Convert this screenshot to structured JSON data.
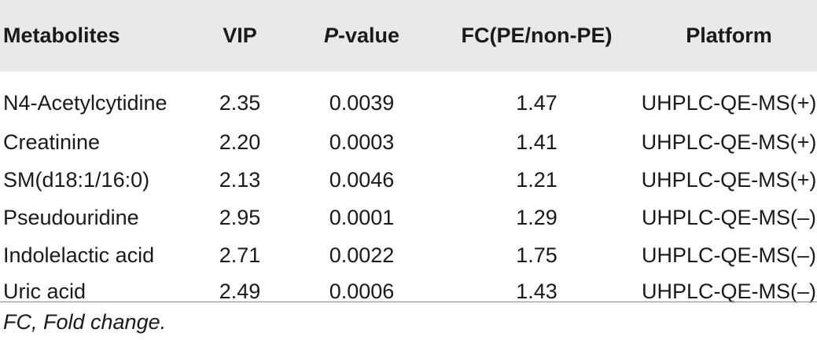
{
  "table": {
    "headers": {
      "metabolites": "Metabolites",
      "vip": "VIP",
      "p_italic": "P",
      "p_rest": "-value",
      "fc": "FC(PE/non-PE)",
      "platform": "Platform"
    },
    "rows": [
      {
        "metabolite": "N4-Acetylcytidine",
        "vip": "2.35",
        "p": "0.0039",
        "fc": "1.47",
        "platform": "UHPLC-QE-MS(+)"
      },
      {
        "metabolite": "Creatinine",
        "vip": "2.20",
        "p": "0.0003",
        "fc": "1.41",
        "platform": "UHPLC-QE-MS(+)"
      },
      {
        "metabolite": "SM(d18:1/16:0)",
        "vip": "2.13",
        "p": "0.0046",
        "fc": "1.21",
        "platform": "UHPLC-QE-MS(+)"
      },
      {
        "metabolite": "Pseudouridine",
        "vip": "2.95",
        "p": "0.0001",
        "fc": "1.29",
        "platform": "UHPLC-QE-MS(–)"
      },
      {
        "metabolite": "Indolelactic acid",
        "vip": "2.71",
        "p": "0.0022",
        "fc": "1.75",
        "platform": "UHPLC-QE-MS(–)"
      },
      {
        "metabolite": "Uric acid",
        "vip": "2.49",
        "p": "0.0006",
        "fc": "1.43",
        "platform": "UHPLC-QE-MS(–)"
      }
    ]
  },
  "footnote": "FC, Fold change."
}
